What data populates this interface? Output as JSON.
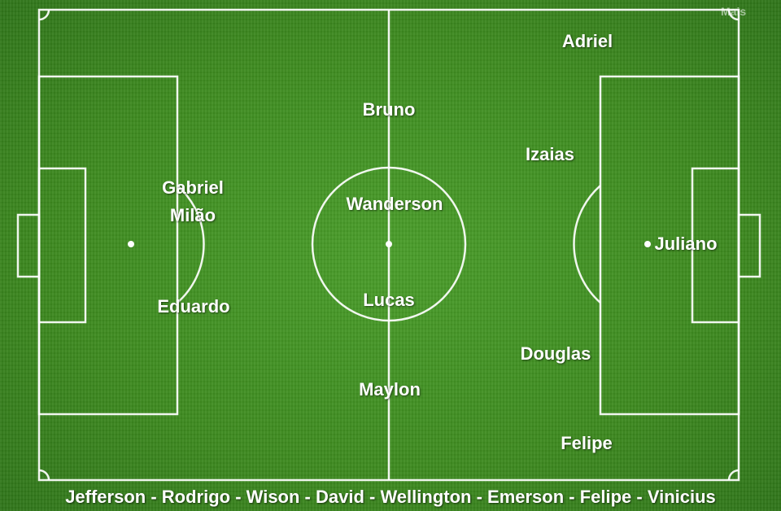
{
  "field": {
    "grass_color": "#3f8f22",
    "line_color": "#ffffff"
  },
  "watermark": {
    "text": "Mais"
  },
  "players": {
    "adriel": "Adriel",
    "bruno": "Bruno",
    "izaias": "Izaias",
    "gabriel_milao": "Gabriel Milão",
    "wanderson": "Wanderson",
    "juliano": "Juliano",
    "lucas": "Lucas",
    "eduardo": "Eduardo",
    "douglas": "Douglas",
    "maylon": "Maylon",
    "felipe": "Felipe"
  },
  "substitutes": "Jefferson - Rodrigo - Wison - David - Wellington - Emerson - Felipe - Vinicius"
}
